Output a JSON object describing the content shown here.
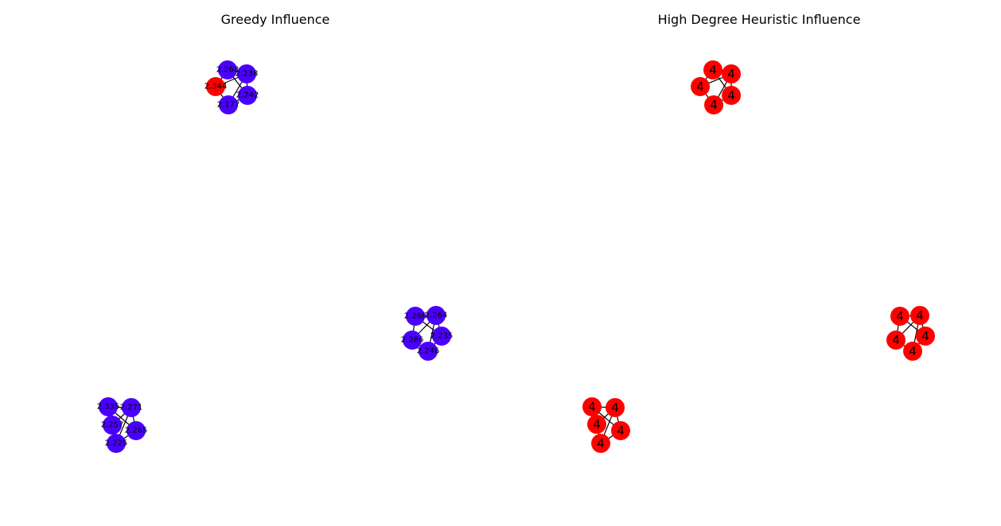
{
  "colors": {
    "influenced": "#ff0000",
    "not_influenced": "#4b00ff",
    "edge": "#000000",
    "text": "#000000"
  },
  "panels": [
    {
      "title": "Greedy Influence",
      "label_style": "small",
      "clusters": [
        {
          "nodes": [
            {
              "label": "2.268",
              "state": "not_influenced"
            },
            {
              "label": "2.238",
              "state": "not_influenced"
            },
            {
              "label": "2.242",
              "state": "not_influenced"
            },
            {
              "label": "2.177",
              "state": "not_influenced"
            },
            {
              "label": "2.344",
              "state": "influenced"
            }
          ]
        },
        {
          "nodes": [
            {
              "label": "2.268",
              "state": "not_influenced"
            },
            {
              "label": "2.264",
              "state": "not_influenced"
            },
            {
              "label": "2.235",
              "state": "not_influenced"
            },
            {
              "label": "2.246",
              "state": "not_influenced"
            },
            {
              "label": "2.286",
              "state": "not_influenced"
            }
          ]
        },
        {
          "nodes": [
            {
              "label": "2.335",
              "state": "not_influenced"
            },
            {
              "label": "2.271",
              "state": "not_influenced"
            },
            {
              "label": "2.265",
              "state": "not_influenced"
            },
            {
              "label": "2.225",
              "state": "not_influenced"
            },
            {
              "label": "2.257",
              "state": "not_influenced"
            }
          ]
        }
      ]
    },
    {
      "title": "High Degree Heuristic Influence",
      "label_style": "large",
      "clusters": [
        {
          "nodes": [
            {
              "label": "4",
              "state": "influenced"
            },
            {
              "label": "4",
              "state": "influenced"
            },
            {
              "label": "4",
              "state": "influenced"
            },
            {
              "label": "4",
              "state": "influenced"
            },
            {
              "label": "4",
              "state": "influenced"
            }
          ]
        },
        {
          "nodes": [
            {
              "label": "4",
              "state": "influenced"
            },
            {
              "label": "4",
              "state": "influenced"
            },
            {
              "label": "4",
              "state": "influenced"
            },
            {
              "label": "4",
              "state": "influenced"
            },
            {
              "label": "4",
              "state": "influenced"
            }
          ]
        },
        {
          "nodes": [
            {
              "label": "4",
              "state": "influenced"
            },
            {
              "label": "4",
              "state": "influenced"
            },
            {
              "label": "4",
              "state": "influenced"
            },
            {
              "label": "4",
              "state": "influenced"
            },
            {
              "label": "4",
              "state": "influenced"
            }
          ]
        }
      ]
    }
  ]
}
